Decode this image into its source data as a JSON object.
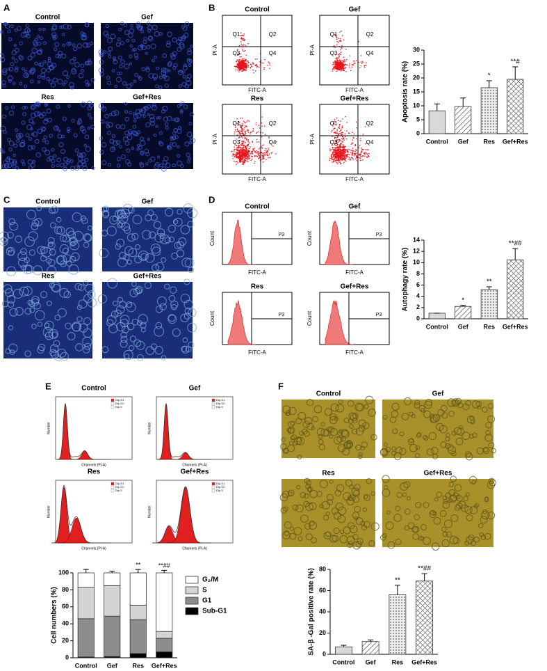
{
  "panels": [
    {
      "letter": "A",
      "images": [
        "Control",
        "Gef",
        "Res",
        "Gef+Res"
      ]
    },
    {
      "letter": "B",
      "plots": [
        "Control",
        "Gef",
        "Res",
        "Gef+Res"
      ],
      "quadrants": [
        "Q1",
        "Q2",
        "Q3",
        "Q4"
      ],
      "x_label": "FITC-A",
      "y_label": "PI-A"
    },
    {
      "letter": "C",
      "images": [
        "Control",
        "Gef",
        "Res",
        "Gef+Res"
      ]
    },
    {
      "letter": "D",
      "plots": [
        "Control",
        "Gef",
        "Res",
        "Gef+Res"
      ],
      "gate": "P3",
      "x_label": "FITC-A",
      "y_label": "Count"
    },
    {
      "letter": "E",
      "plots": [
        "Control",
        "Gef",
        "Res",
        "Gef+Res"
      ],
      "x_label": "Channels (PI-A)",
      "y_label": "Number",
      "legend": [
        "Dip G1",
        "Dip G2",
        "Dip S"
      ]
    },
    {
      "letter": "F",
      "images": [
        "Control",
        "Gef",
        "Res",
        "Gef+Res"
      ]
    }
  ],
  "chart_data": [
    {
      "type": "bar",
      "y_label": "Apoptosis rate (%)",
      "categories": [
        "Control",
        "Gef",
        "Res",
        "Gef+Res"
      ],
      "values": [
        8.2,
        9.8,
        16.5,
        19.5
      ],
      "errors": [
        2.5,
        3,
        2.5,
        4.5
      ],
      "annotations": [
        null,
        null,
        "*",
        "**#"
      ],
      "patterns": [
        "solid",
        "hatch",
        "dots",
        "crosshatch"
      ],
      "color": "#d9d9d9",
      "ylim": [
        0,
        30
      ],
      "yticks": [
        0,
        5,
        10,
        15,
        20,
        25,
        30
      ]
    },
    {
      "type": "bar",
      "y_label": "Autophagy rate (%)",
      "categories": [
        "Control",
        "Gef",
        "Res",
        "Gef+Res"
      ],
      "values": [
        1.0,
        2.2,
        5.2,
        10.5
      ],
      "errors": [
        0,
        0.2,
        0.5,
        2
      ],
      "annotations": [
        null,
        "*",
        "**",
        "**##"
      ],
      "patterns": [
        "solid",
        "hatch",
        "dots",
        "crosshatch"
      ],
      "color": "#d9d9d9",
      "ylim": [
        0,
        14
      ],
      "yticks": [
        0,
        2,
        4,
        6,
        8,
        10,
        12,
        14
      ]
    },
    {
      "type": "stacked_bar",
      "y_label": "Cell numbers (%)",
      "categories": [
        "Control",
        "Gef",
        "Res",
        "Gef+Res"
      ],
      "series": [
        {
          "name": "Sub-G1",
          "color": "#000000",
          "values": [
            1,
            1.5,
            5,
            7
          ],
          "errors": [
            0.5,
            0.8,
            1,
            1.5
          ],
          "annotations": [
            null,
            null,
            null,
            null
          ]
        },
        {
          "name": "G1",
          "color": "#8c8c8c",
          "values": [
            45,
            47.5,
            40,
            16
          ],
          "errors": [
            3,
            2,
            1.5,
            2
          ],
          "annotations": [
            null,
            null,
            "**",
            "**##"
          ]
        },
        {
          "name": "S",
          "color": "#d4d4d4",
          "values": [
            37,
            36,
            17,
            8
          ],
          "errors": [
            2,
            2,
            3,
            3
          ],
          "annotations": [
            null,
            null,
            null,
            "**##"
          ]
        },
        {
          "name": "G₂/M",
          "color": "#ffffff",
          "values": [
            17,
            15,
            38,
            69
          ],
          "errors": [
            4,
            2,
            4,
            3
          ],
          "annotations": [
            null,
            null,
            "**",
            "**##"
          ]
        }
      ],
      "ylim": [
        0,
        100
      ],
      "yticks": [
        0,
        20,
        40,
        60,
        80,
        100
      ]
    },
    {
      "type": "bar",
      "y_label": "SA-β -Gal positive rate (%)",
      "categories": [
        "Control",
        "Gef",
        "Res",
        "Gef+Res"
      ],
      "values": [
        7,
        12,
        56,
        69
      ],
      "errors": [
        1.5,
        1.5,
        9,
        7
      ],
      "annotations": [
        null,
        null,
        "**",
        "**##"
      ],
      "patterns": [
        "solid",
        "hatch",
        "dots",
        "crosshatch"
      ],
      "color": "#d9d9d9",
      "ylim": [
        0,
        80
      ],
      "yticks": [
        0,
        20,
        40,
        60,
        80
      ]
    }
  ]
}
